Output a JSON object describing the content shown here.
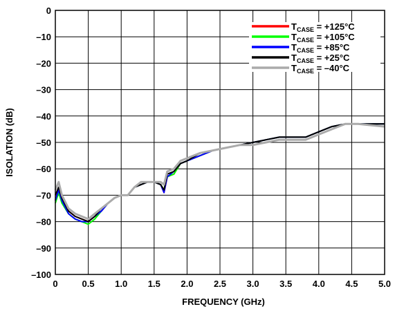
{
  "chart_data": {
    "type": "line",
    "title": "",
    "xlabel": "FREQUENCY (GHz)",
    "ylabel": "ISOLATION (dB)",
    "xlim": [
      0,
      5.0
    ],
    "ylim": [
      -100,
      0
    ],
    "x_ticks": [
      0,
      0.5,
      1.0,
      1.5,
      2.0,
      2.5,
      3.0,
      3.5,
      4.0,
      4.5,
      5.0
    ],
    "x_tick_labels": [
      "0",
      "0.5",
      "1.0",
      "1.5",
      "2.0",
      "2.5",
      "3.0",
      "3.5",
      "4.0",
      "4.5",
      "5.0"
    ],
    "y_ticks": [
      0,
      -10,
      -20,
      -30,
      -40,
      -50,
      -60,
      -70,
      -80,
      -90,
      -100
    ],
    "y_tick_labels": [
      "0",
      "–10",
      "–20",
      "–30",
      "–40",
      "–50",
      "–60",
      "–70",
      "–80",
      "–90",
      "–100"
    ],
    "grid": true,
    "legend_position": "top-right",
    "x": [
      0.0,
      0.05,
      0.1,
      0.2,
      0.3,
      0.4,
      0.5,
      0.6,
      0.7,
      0.8,
      0.9,
      1.0,
      1.1,
      1.2,
      1.3,
      1.4,
      1.5,
      1.55,
      1.6,
      1.65,
      1.7,
      1.8,
      1.9,
      2.0,
      2.2,
      2.4,
      2.6,
      2.8,
      3.0,
      3.2,
      3.4,
      3.6,
      3.8,
      4.0,
      4.2,
      4.4,
      4.6,
      4.8,
      5.0
    ],
    "series": [
      {
        "name_main": "T",
        "name_sub": "CASE",
        "name_value": " = +125°C",
        "color": "#ff0000",
        "values": [
          -72,
          -68,
          -72,
          -76,
          -78,
          -79,
          -80,
          -78,
          -76,
          -73,
          -71,
          -70,
          -70,
          -67,
          -66,
          -65,
          -65,
          -65.5,
          -66,
          -69,
          -63,
          -62,
          -58,
          -57,
          -55,
          -53,
          -52,
          -51,
          -50,
          -49,
          -48,
          -48,
          -48,
          -46,
          -44,
          -43,
          -43,
          -43,
          -43
        ]
      },
      {
        "name_main": "T",
        "name_sub": "CASE",
        "name_value": " = +105°C",
        "color": "#00ff00",
        "values": [
          -73,
          -69,
          -73,
          -77,
          -79,
          -80,
          -81,
          -79,
          -76,
          -73,
          -71,
          -70,
          -70,
          -67,
          -66,
          -65,
          -65,
          -65.5,
          -66,
          -68,
          -63,
          -62,
          -58,
          -57,
          -55,
          -53,
          -52,
          -51,
          -50,
          -49,
          -48,
          -48,
          -48,
          -46,
          -44,
          -43,
          -43,
          -43,
          -43
        ]
      },
      {
        "name_main": "T",
        "name_sub": "CASE",
        "name_value": " = +85°C",
        "color": "#0000ff",
        "values": [
          -72,
          -68,
          -72,
          -77,
          -79,
          -80,
          -80,
          -78,
          -76,
          -73,
          -71,
          -70,
          -70,
          -67,
          -66,
          -65,
          -65,
          -65.5,
          -66,
          -69,
          -63,
          -61,
          -58,
          -57,
          -55,
          -53,
          -52,
          -51,
          -50,
          -49,
          -48,
          -48,
          -48,
          -46,
          -44,
          -43,
          -43,
          -43,
          -43
        ]
      },
      {
        "name_main": "T",
        "name_sub": "CASE",
        "name_value": " = +25°C",
        "color": "#000000",
        "values": [
          -70,
          -67,
          -71,
          -76,
          -78,
          -79,
          -80,
          -78,
          -75,
          -73,
          -71,
          -70,
          -70,
          -67,
          -66,
          -65,
          -65,
          -65.5,
          -66,
          -68,
          -62,
          -61,
          -58,
          -57,
          -54,
          -53,
          -52,
          -51,
          -50,
          -49,
          -48,
          -48,
          -48,
          -46,
          -44,
          -43,
          -43,
          -43,
          -43
        ]
      },
      {
        "name_main": "T",
        "name_sub": "CASE",
        "name_value": " = –40°C",
        "color": "#aaaaaa",
        "values": [
          -68,
          -65,
          -70,
          -75,
          -77,
          -78,
          -79,
          -77,
          -75,
          -73,
          -71,
          -70,
          -70,
          -67,
          -65,
          -65,
          -65,
          -65,
          -65,
          -66,
          -61,
          -60,
          -57,
          -56,
          -54,
          -53,
          -52,
          -51,
          -51,
          -50,
          -49,
          -49,
          -49,
          -47,
          -45,
          -43,
          -43,
          -43.5,
          -44
        ]
      }
    ]
  }
}
